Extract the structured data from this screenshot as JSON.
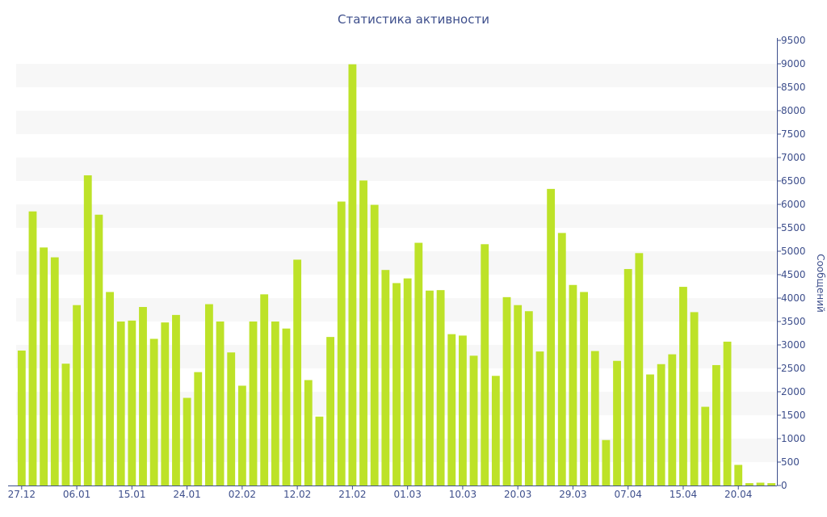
{
  "chart_data": {
    "type": "bar",
    "title": "Статистика активности",
    "xlabel": "",
    "ylabel": "Сообщений",
    "ylim": [
      0,
      9500
    ],
    "y_ticks": [
      0,
      500,
      1000,
      1500,
      2000,
      2500,
      3000,
      3500,
      4000,
      4500,
      5000,
      5500,
      6000,
      6500,
      7000,
      7500,
      8000,
      8500,
      9000,
      9500
    ],
    "y_axis_position": "right",
    "grid": "alternating horizontal bands",
    "legend": "none",
    "x_tick_labels": [
      {
        "label": "27.12",
        "index": 0
      },
      {
        "label": "06.01",
        "index": 5
      },
      {
        "label": "15.01",
        "index": 10
      },
      {
        "label": "24.01",
        "index": 15
      },
      {
        "label": "02.02",
        "index": 20
      },
      {
        "label": "12.02",
        "index": 25
      },
      {
        "label": "21.02",
        "index": 30
      },
      {
        "label": "01.03",
        "index": 35
      },
      {
        "label": "10.03",
        "index": 40
      },
      {
        "label": "20.03",
        "index": 45
      },
      {
        "label": "29.03",
        "index": 50
      },
      {
        "label": "07.04",
        "index": 55
      },
      {
        "label": "15.04",
        "index": 60
      },
      {
        "label": "20.04",
        "index": 65
      }
    ],
    "values": [
      2880,
      5850,
      5080,
      4870,
      2600,
      3850,
      6620,
      5780,
      4130,
      3500,
      3520,
      3810,
      3130,
      3480,
      3640,
      1870,
      2420,
      3870,
      3500,
      2840,
      2130,
      3500,
      4080,
      3500,
      3350,
      4820,
      2250,
      1470,
      3170,
      6060,
      8990,
      6510,
      5990,
      4600,
      4320,
      4420,
      5180,
      4160,
      4170,
      3230,
      3200,
      2770,
      5150,
      2340,
      4020,
      3850,
      3720,
      2860,
      6330,
      5390,
      4280,
      4130,
      2870,
      970,
      2660,
      4620,
      4960,
      2370,
      2590,
      2800,
      4240,
      3700,
      1680,
      2570,
      3070,
      440,
      50,
      60,
      50
    ],
    "colors": {
      "bar": "#bde228",
      "band": "#f7f7f7",
      "axis": "#3e4f8c",
      "text": "#3e4f8c"
    }
  }
}
